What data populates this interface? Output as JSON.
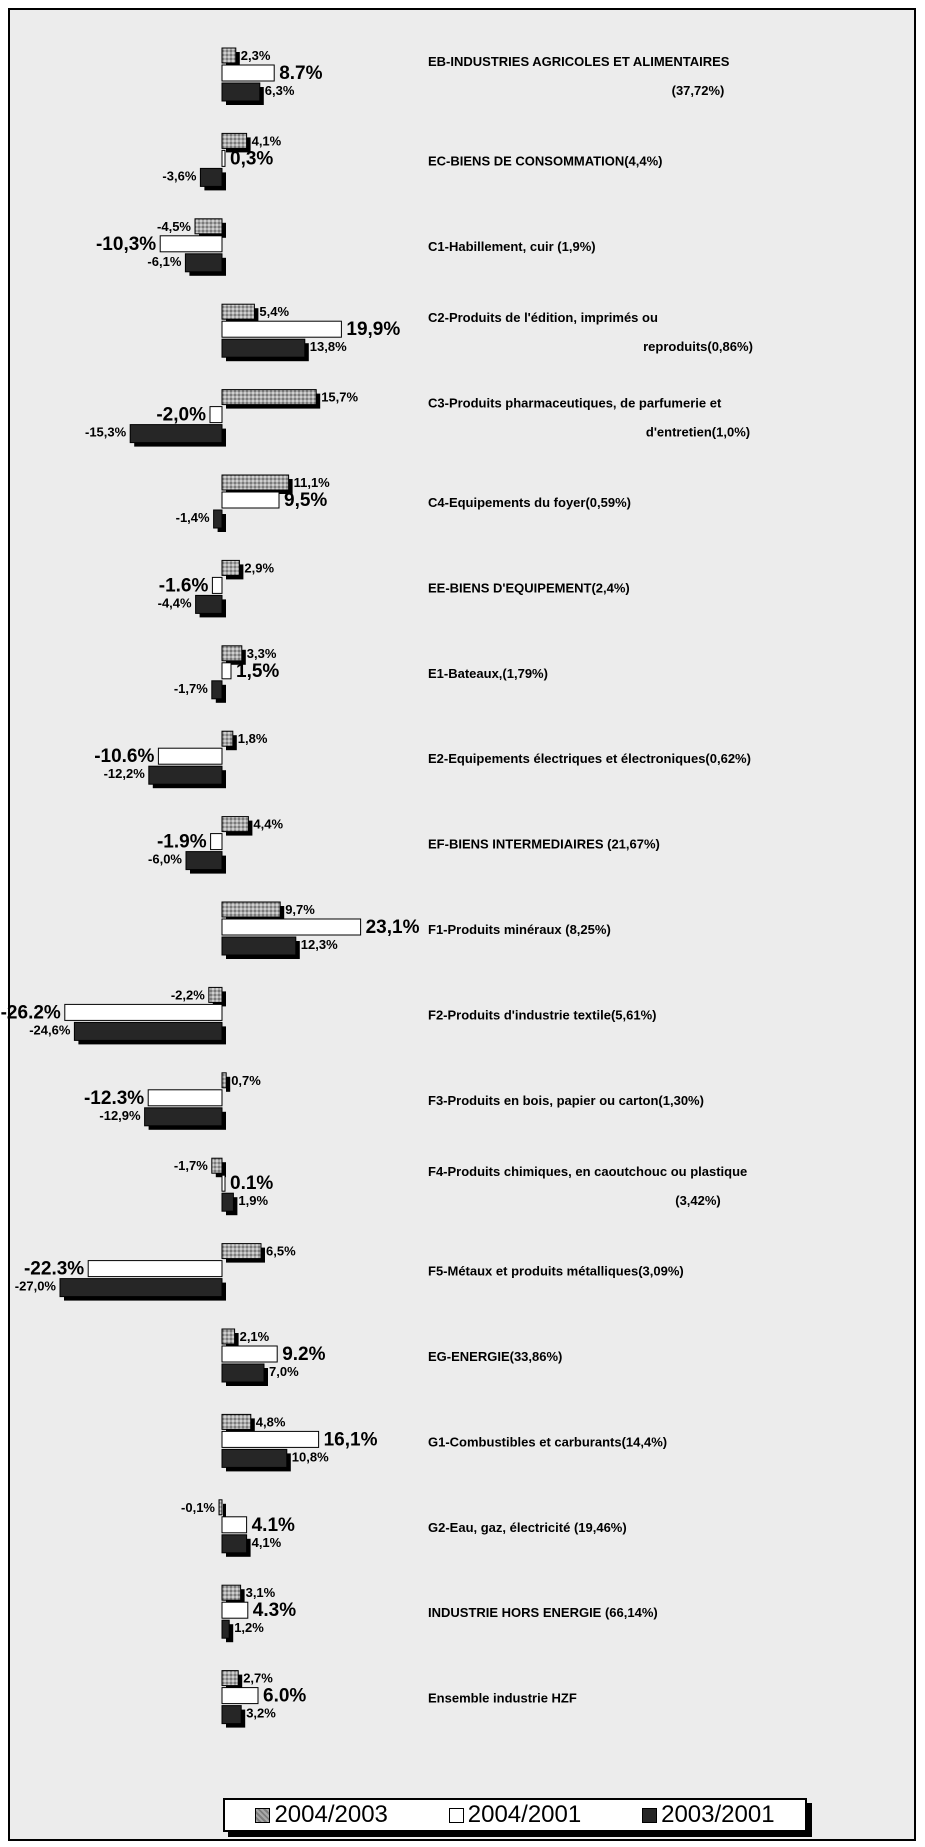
{
  "chart_data": {
    "type": "bar",
    "orientation": "horizontal",
    "series": [
      {
        "name": "2004/2003",
        "color": "#9a9a9a",
        "values": [
          2.3,
          4.1,
          -4.5,
          5.4,
          15.7,
          11.1,
          2.9,
          3.3,
          1.8,
          4.4,
          9.7,
          -2.2,
          0.7,
          -1.7,
          6.5,
          2.1,
          4.8,
          -0.1,
          3.1,
          2.7
        ],
        "labels": [
          "2,3%",
          "4,1%",
          "-4,5%",
          "5,4%",
          "15,7%",
          "11,1%",
          "2,9%",
          "3,3%",
          "1,8%",
          "4,4%",
          "9,7%",
          "-2,2%",
          "0,7%",
          "-1,7%",
          "6,5%",
          "2,1%",
          "4,8%",
          "-0,1%",
          "3,1%",
          "2,7%"
        ]
      },
      {
        "name": "2004/2001",
        "color": "#ffffff",
        "values": [
          8.7,
          0.3,
          -10.3,
          19.9,
          -2.0,
          9.5,
          -1.6,
          1.5,
          -10.6,
          -1.9,
          23.1,
          -26.2,
          -12.3,
          0.1,
          -22.3,
          9.2,
          16.1,
          4.1,
          4.3,
          6.0
        ],
        "labels": [
          "8.7%",
          "0,3%",
          "-10,3%",
          "19,9%",
          "-2,0%",
          "9,5%",
          "-1.6%",
          "1,5%",
          "-10.6%",
          "-1.9%",
          "23,1%",
          "-26.2%",
          "-12.3%",
          "0.1%",
          "-22.3%",
          "9.2%",
          "16,1%",
          "4.1%",
          "4.3%",
          "6.0%"
        ]
      },
      {
        "name": "2003/2001",
        "color": "#262626",
        "values": [
          6.3,
          -3.6,
          -6.1,
          13.8,
          -15.3,
          -1.4,
          -4.4,
          -1.7,
          -12.2,
          -6.0,
          12.3,
          -24.6,
          -12.9,
          1.9,
          -27.0,
          7.0,
          10.8,
          4.1,
          1.2,
          3.2
        ],
        "labels": [
          "6,3%",
          "-3,6%",
          "-6,1%",
          "13,8%",
          "-15,3%",
          "-1,4%",
          "-4,4%",
          "-1,7%",
          "-12,2%",
          "-6,0%",
          "12,3%",
          "-24,6%",
          "-12,9%",
          "1,9%",
          "-27,0%",
          "7,0%",
          "10,8%",
          "4,1%",
          "1,2%",
          "3,2%"
        ]
      }
    ],
    "categories": [
      [
        "EB-INDUSTRIES AGRICOLES ET ALIMENTAIRES",
        "(37,72%)"
      ],
      [
        "EC-BIENS DE CONSOMMATION(4,4%)"
      ],
      [
        "C1-Habillement, cuir (1,9%)"
      ],
      [
        "C2-Produits de l'édition, imprimés ou",
        "reproduits(0,86%)"
      ],
      [
        "C3-Produits pharmaceutiques, de parfumerie et",
        "d'entretien(1,0%)"
      ],
      [
        "C4-Equipements du foyer(0,59%)"
      ],
      [
        "EE-BIENS D'EQUIPEMENT(2,4%)"
      ],
      [
        "E1-Bateaux,(1,79%)"
      ],
      [
        "E2-Equipements électriques et électroniques(0,62%)"
      ],
      [
        "EF-BIENS INTERMEDIAIRES (21,67%)"
      ],
      [
        "F1-Produits minéraux (8,25%)"
      ],
      [
        "F2-Produits d'industrie textile(5,61%)"
      ],
      [
        "F3-Produits en bois, papier ou carton(1,30%)"
      ],
      [
        "F4-Produits chimiques, en caoutchouc ou plastique",
        "(3,42%)"
      ],
      [
        "F5-Métaux et produits métalliques(3,09%)"
      ],
      [
        "EG-ENERGIE(33,86%)"
      ],
      [
        "G1-Combustibles et carburants(14,4%)"
      ],
      [
        "G2-Eau, gaz, électricité (19,46%)"
      ],
      [
        "INDUSTRIE HORS ENERGIE (66,14%)"
      ],
      [
        "Ensemble industrie HZF"
      ]
    ],
    "legend_position": "bottom",
    "grid": false,
    "title": "",
    "xlabel": "",
    "ylabel": ""
  }
}
